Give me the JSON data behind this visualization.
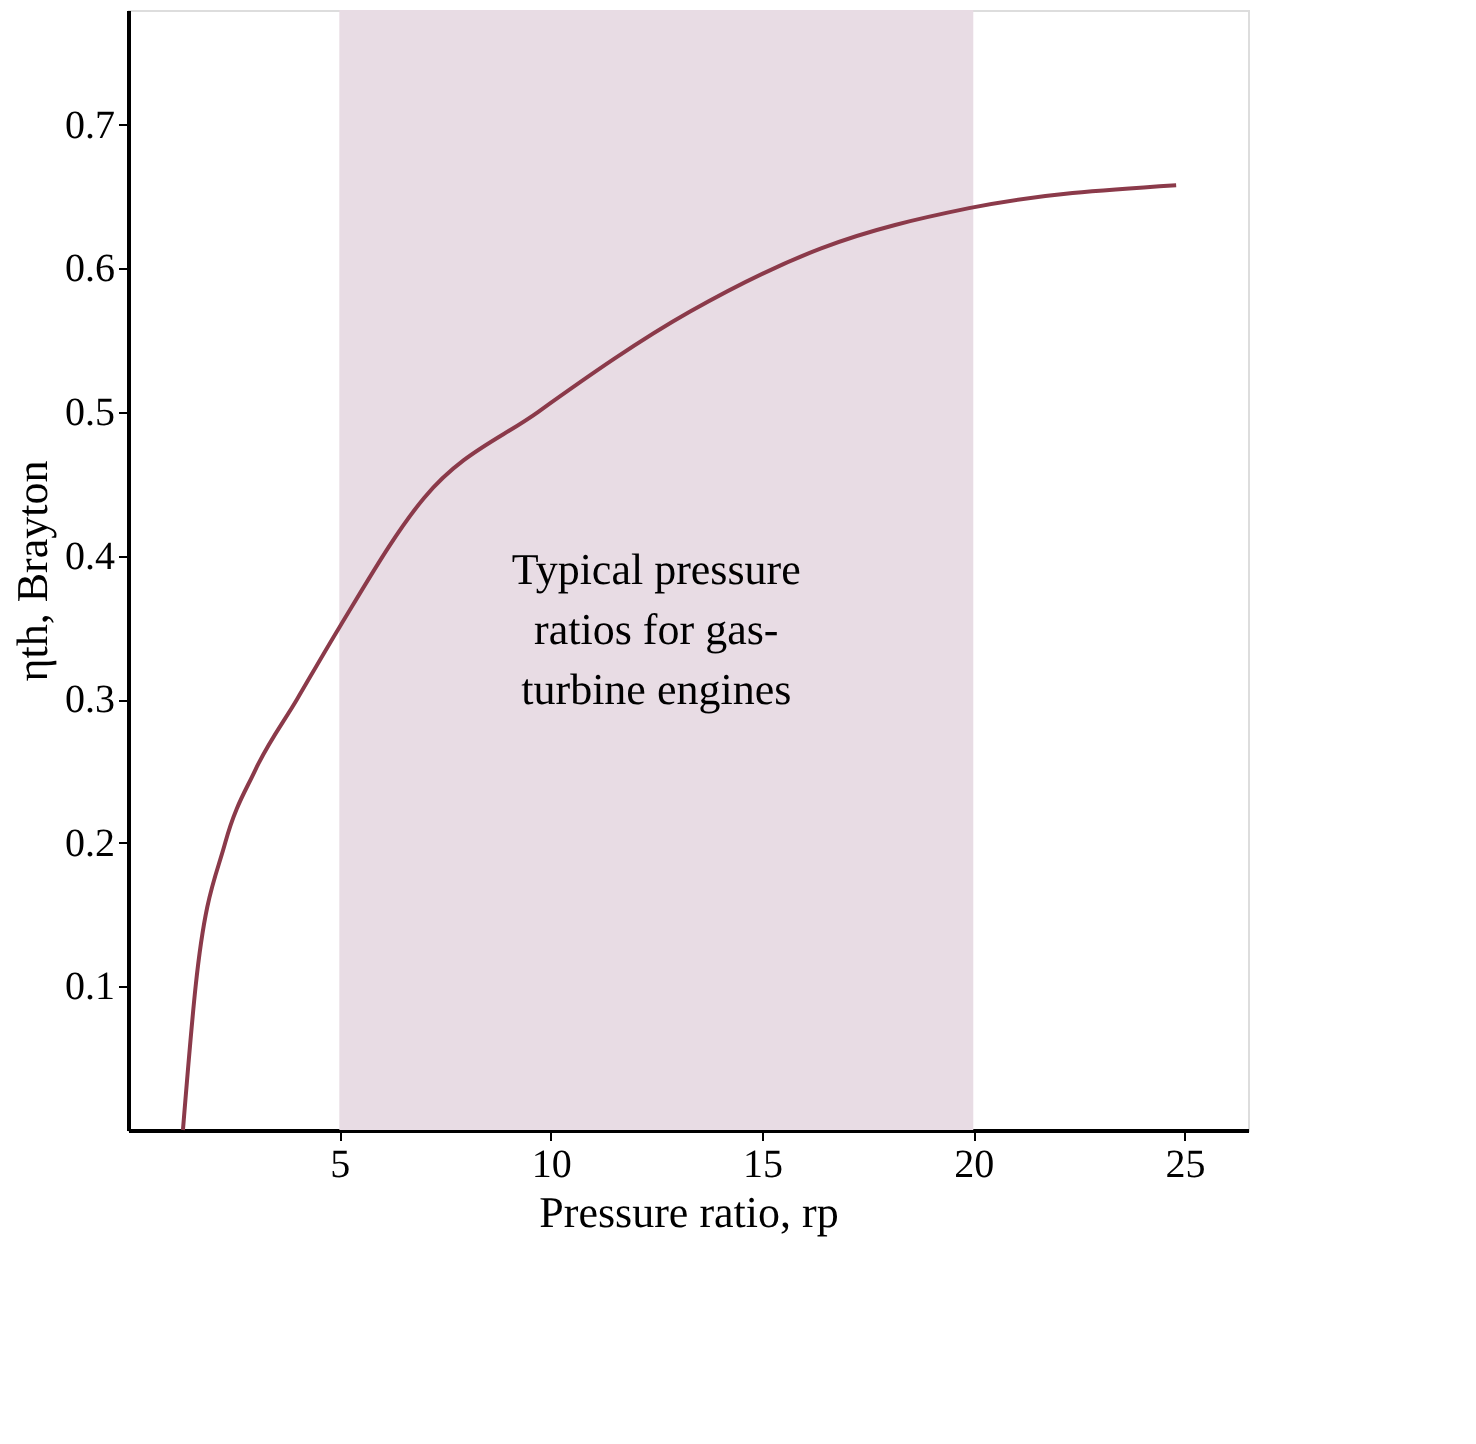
{
  "chart_data": {
    "type": "line",
    "xlabel": "Pressure ratio, rp",
    "ylabel": "ηth, Brayton",
    "x": [
      1.3,
      1.6,
      2.3,
      3.0,
      4.0,
      5.0,
      7.0,
      9.7,
      13.3,
      16.4,
      19.9,
      24.8
    ],
    "series": [
      {
        "color": "#8b3a4a",
        "values": [
          0.0,
          0.1,
          0.2,
          0.25,
          0.3,
          0.35,
          0.44,
          0.5,
          0.57,
          0.614,
          0.642,
          0.658
        ]
      }
    ],
    "xlim": [
      0,
      26.5
    ],
    "ylim": [
      0,
      0.78
    ],
    "xticks": [
      5,
      10,
      15,
      20,
      25
    ],
    "yticks": [
      0.1,
      0.2,
      0.3,
      0.4,
      0.5,
      0.6,
      0.7
    ],
    "grid": false,
    "marker": "none",
    "line_style": "solid",
    "bands": [
      {
        "axis": "x",
        "from": 5,
        "to": 20,
        "color": "#e8dce4",
        "label": "Typical pressure\nratios for gas-\nturbine engines"
      }
    ]
  }
}
